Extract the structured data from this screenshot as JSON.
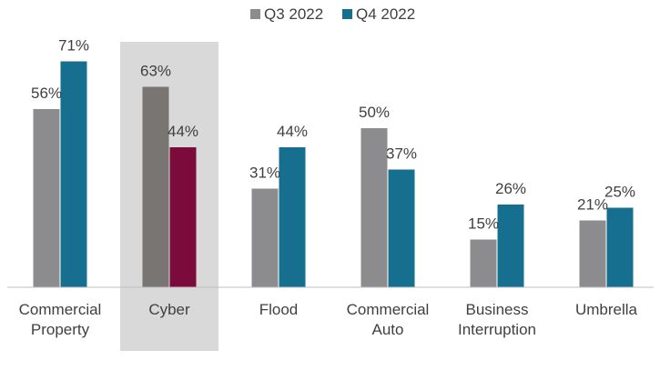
{
  "chart_data": {
    "type": "bar",
    "title": "",
    "xlabel": "",
    "ylabel": "",
    "categories": [
      [
        "Commercial",
        "Property"
      ],
      [
        "Cyber"
      ],
      [
        "Flood"
      ],
      [
        "Commercial",
        "Auto"
      ],
      [
        "Business",
        "Interruption"
      ],
      [
        "Umbrella"
      ]
    ],
    "series": [
      {
        "name": "Q3 2022",
        "values": [
          56,
          63,
          31,
          50,
          15,
          21
        ],
        "labels": [
          "56%",
          "63%",
          "31%",
          "50%",
          "15%",
          "21%"
        ],
        "color": "#8c8c8e"
      },
      {
        "name": "Q4 2022",
        "values": [
          71,
          44,
          44,
          37,
          26,
          25
        ],
        "labels": [
          "71%",
          "44%",
          "44%",
          "37%",
          "26%",
          "25%"
        ],
        "color": "#176f8f"
      }
    ],
    "highlight": {
      "category_index": 1,
      "band_color": "#d9d9d9",
      "series_colors": [
        "#787573",
        "#7b0b3b"
      ]
    },
    "ylim": [
      0,
      100
    ],
    "legend": "top-center",
    "grid": false
  }
}
